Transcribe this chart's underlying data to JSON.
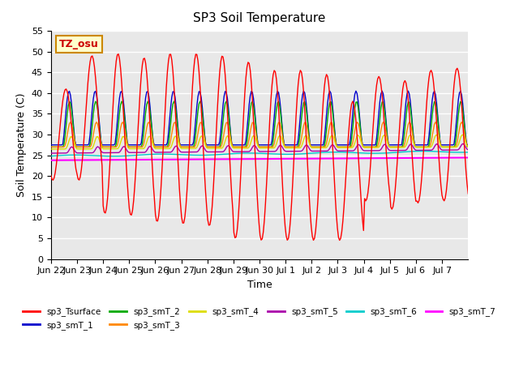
{
  "title": "SP3 Soil Temperature",
  "ylabel": "Soil Temperature (C)",
  "xlabel": "Time",
  "annotation": "TZ_osu",
  "n_days": 16,
  "ylim": [
    0,
    55
  ],
  "yticks": [
    0,
    5,
    10,
    15,
    20,
    25,
    30,
    35,
    40,
    45,
    50,
    55
  ],
  "xtick_positions": [
    0,
    1,
    2,
    3,
    4,
    5,
    6,
    7,
    8,
    9,
    10,
    11,
    12,
    13,
    14,
    15
  ],
  "xtick_labels": [
    "Jun 22",
    "Jun 23",
    "Jun 24",
    "Jun 25",
    "Jun 26",
    "Jun 27",
    "Jun 28",
    "Jun 29",
    "Jun 30",
    "Jul 1",
    "Jul 2",
    "Jul 3",
    "Jul 4",
    "Jul 5",
    "Jul 6",
    "Jul 7"
  ],
  "background_color": "#e8e8e8",
  "grid_color": "#ffffff",
  "series_colors": {
    "sp3_Tsurface": "#ff0000",
    "sp3_smT_1": "#0000cc",
    "sp3_smT_2": "#00aa00",
    "sp3_smT_3": "#ff8800",
    "sp3_smT_4": "#dddd00",
    "sp3_smT_5": "#aa00aa",
    "sp3_smT_6": "#00cccc",
    "sp3_smT_7": "#ff00ff"
  },
  "legend_series": [
    "sp3_Tsurface",
    "sp3_smT_1",
    "sp3_smT_2",
    "sp3_smT_3",
    "sp3_smT_4",
    "sp3_smT_5",
    "sp3_smT_6",
    "sp3_smT_7"
  ]
}
